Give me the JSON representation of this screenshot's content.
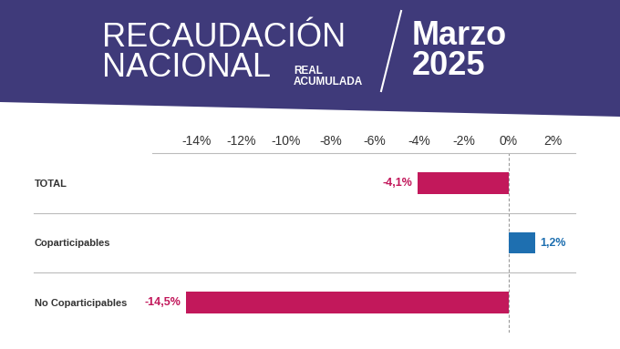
{
  "chart_data": {
    "type": "bar",
    "orientation": "horizontal",
    "title": "RECAUDACIÓN\nNACIONAL",
    "subtitle": "REAL\nACUMULADA",
    "annotations": [
      "Marzo\n2025"
    ],
    "categories": [
      "TOTAL",
      "Coparticipables",
      "No Coparticipables"
    ],
    "values": [
      -4.1,
      1.2,
      -14.5
    ],
    "value_labels": [
      "-4,1%",
      "1,2%",
      "-14,5%"
    ],
    "colors": [
      "#c2185b",
      "#1e6fb0",
      "#c2185b"
    ],
    "xlim": [
      -16,
      3
    ],
    "xticks": [
      {
        "value": -14,
        "label": "-14%"
      },
      {
        "value": -12,
        "label": "-12%"
      },
      {
        "value": -10,
        "label": "-10%"
      },
      {
        "value": -8,
        "label": "-8%"
      },
      {
        "value": -6,
        "label": "-6%"
      },
      {
        "value": -4,
        "label": "-4%"
      },
      {
        "value": -2,
        "label": "-2%"
      },
      {
        "value": 0,
        "label": "0%"
      },
      {
        "value": 2,
        "label": "2%"
      }
    ],
    "data_labels": true,
    "grid": false
  }
}
